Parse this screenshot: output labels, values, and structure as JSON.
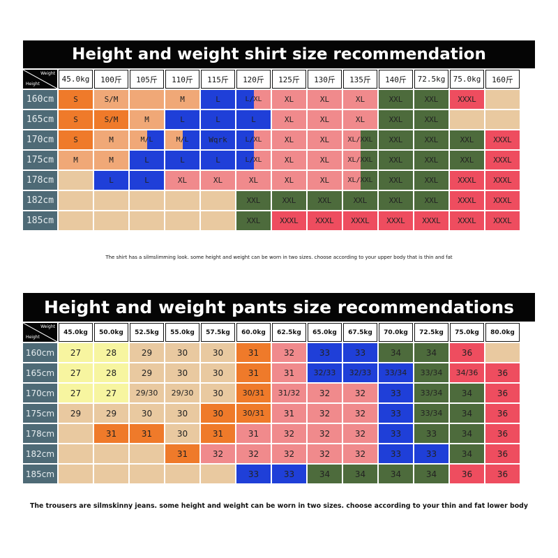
{
  "colors": {
    "black": "#050505",
    "row_header": "#4e6a76",
    "tan": "#e9c9a0",
    "orange": "#ef7a2a",
    "peach": "#f0a877",
    "blue": "#1f3fd8",
    "pink": "#f08a8c",
    "green": "#4d6b3c",
    "red": "#ee4d5f",
    "yellow": "#f7f5a0",
    "blank": "#e9c9a0"
  },
  "shirt": {
    "title": "Height and weight shirt size recommendation",
    "corner": {
      "weight": "Weight",
      "height": "Height"
    },
    "weights": [
      "45.0kg",
      "100斤",
      "105斤",
      "110斤",
      "115斤",
      "120斤",
      "125斤",
      "130斤",
      "135斤",
      "140斤",
      "72.5kg",
      "75.0kg",
      "160斤"
    ],
    "heights": [
      "160cm",
      "165cm",
      "170cm",
      "175cm",
      "178cm",
      "182cm",
      "185cm"
    ],
    "rows": [
      [
        [
          "S",
          "orange"
        ],
        [
          "S/M",
          "peach"
        ],
        [
          "",
          "peach"
        ],
        [
          "M",
          "peach"
        ],
        [
          "L",
          "blue"
        ],
        [
          "L/XL",
          "blue|pink"
        ],
        [
          "XL",
          "pink"
        ],
        [
          "XL",
          "pink"
        ],
        [
          "XL",
          "pink"
        ],
        [
          "XXL",
          "green"
        ],
        [
          "XXL",
          "green"
        ],
        [
          "XXXL",
          "red"
        ],
        [
          "",
          "blank"
        ]
      ],
      [
        [
          "S",
          "orange"
        ],
        [
          "S/M",
          "orange"
        ],
        [
          "M",
          "peach"
        ],
        [
          "L",
          "blue"
        ],
        [
          "L",
          "blue"
        ],
        [
          "L",
          "blue"
        ],
        [
          "XL",
          "pink"
        ],
        [
          "XL",
          "pink"
        ],
        [
          "XL",
          "pink"
        ],
        [
          "XXL",
          "green"
        ],
        [
          "XXL",
          "green"
        ],
        [
          "",
          "blank"
        ],
        [
          "",
          "blank"
        ]
      ],
      [
        [
          "S",
          "orange"
        ],
        [
          "M",
          "peach"
        ],
        [
          "M/L",
          "peach|blue"
        ],
        [
          "M/L",
          "peach|blue"
        ],
        [
          "Wqrk",
          "blue"
        ],
        [
          "L/XL",
          "blue|pink"
        ],
        [
          "XL",
          "pink"
        ],
        [
          "XL",
          "pink"
        ],
        [
          "XL/XXL",
          "pink|green"
        ],
        [
          "XXL",
          "green"
        ],
        [
          "XXL",
          "green"
        ],
        [
          "XXL",
          "green"
        ],
        [
          "XXXL",
          "red"
        ]
      ],
      [
        [
          "M",
          "peach"
        ],
        [
          "M",
          "peach"
        ],
        [
          "L",
          "blue"
        ],
        [
          "L",
          "blue"
        ],
        [
          "L",
          "blue"
        ],
        [
          "L/XL",
          "blue|pink"
        ],
        [
          "XL",
          "pink"
        ],
        [
          "XL",
          "pink"
        ],
        [
          "XL/XXL",
          "pink|green"
        ],
        [
          "XXL",
          "green"
        ],
        [
          "XXL",
          "green"
        ],
        [
          "XXL",
          "green"
        ],
        [
          "XXXL",
          "red"
        ]
      ],
      [
        [
          "",
          "blank"
        ],
        [
          "L",
          "blue"
        ],
        [
          "L",
          "blue"
        ],
        [
          "XL",
          "pink"
        ],
        [
          "XL",
          "pink"
        ],
        [
          "XL",
          "pink"
        ],
        [
          "XL",
          "pink"
        ],
        [
          "XL",
          "pink"
        ],
        [
          "XL/XXL",
          "pink|green"
        ],
        [
          "XXL",
          "green"
        ],
        [
          "XXL",
          "green"
        ],
        [
          "XXXL",
          "red"
        ],
        [
          "XXXL",
          "red"
        ]
      ],
      [
        [
          "",
          "blank"
        ],
        [
          "",
          "blank"
        ],
        [
          "",
          "blank"
        ],
        [
          "",
          "blank"
        ],
        [
          "",
          "blank"
        ],
        [
          "XXL",
          "green"
        ],
        [
          "XXL",
          "green"
        ],
        [
          "XXL",
          "green"
        ],
        [
          "XXL",
          "green"
        ],
        [
          "XXL",
          "green"
        ],
        [
          "XXL",
          "green"
        ],
        [
          "XXXL",
          "red"
        ],
        [
          "XXXL",
          "red"
        ]
      ],
      [
        [
          "",
          "blank"
        ],
        [
          "",
          "blank"
        ],
        [
          "",
          "blank"
        ],
        [
          "",
          "blank"
        ],
        [
          "",
          "blank"
        ],
        [
          "XXL",
          "green"
        ],
        [
          "XXXL",
          "red"
        ],
        [
          "XXXL",
          "red"
        ],
        [
          "XXXL",
          "red"
        ],
        [
          "XXXL",
          "red"
        ],
        [
          "XXXL",
          "red"
        ],
        [
          "XXXL",
          "red"
        ],
        [
          "XXXL",
          "red"
        ]
      ]
    ],
    "note": "The shirt has a silmslimming look. some height and weight can be worn in two sizes. choose according to your upper body that is thin and fat"
  },
  "pants": {
    "title": "Height and weight pants size recommendations",
    "corner": {
      "weight": "Weight",
      "height": "Height"
    },
    "weights": [
      "45.0kg",
      "50.0kg",
      "52.5kg",
      "55.0kg",
      "57.5kg",
      "60.0kg",
      "62.5kg",
      "65.0kg",
      "67.5kg",
      "70.0kg",
      "72.5kg",
      "75.0kg",
      "80.0kg"
    ],
    "heights": [
      "160cm",
      "165cm",
      "170cm",
      "175cm",
      "178cm",
      "182cm",
      "185cm"
    ],
    "rows": [
      [
        [
          "27",
          "yellow"
        ],
        [
          "28",
          "yellow"
        ],
        [
          "29",
          "tan"
        ],
        [
          "30",
          "tan"
        ],
        [
          "30",
          "tan"
        ],
        [
          "31",
          "orange"
        ],
        [
          "32",
          "pink"
        ],
        [
          "33",
          "blue"
        ],
        [
          "33",
          "blue"
        ],
        [
          "34",
          "green"
        ],
        [
          "34",
          "green"
        ],
        [
          "36",
          "red"
        ],
        [
          "",
          "blank"
        ]
      ],
      [
        [
          "27",
          "yellow"
        ],
        [
          "28",
          "yellow"
        ],
        [
          "29",
          "tan"
        ],
        [
          "30",
          "tan"
        ],
        [
          "30",
          "tan"
        ],
        [
          "31",
          "orange"
        ],
        [
          "31",
          "pink"
        ],
        [
          "32/33",
          "blue"
        ],
        [
          "32/33",
          "blue"
        ],
        [
          "33/34",
          "blue"
        ],
        [
          "33/34",
          "green"
        ],
        [
          "34/36",
          "red"
        ],
        [
          "36",
          "red"
        ]
      ],
      [
        [
          "27",
          "yellow"
        ],
        [
          "27",
          "yellow"
        ],
        [
          "29/30",
          "tan"
        ],
        [
          "29/30",
          "tan"
        ],
        [
          "30",
          "tan"
        ],
        [
          "30/31",
          "orange"
        ],
        [
          "31/32",
          "pink"
        ],
        [
          "32",
          "pink"
        ],
        [
          "32",
          "pink"
        ],
        [
          "33",
          "blue"
        ],
        [
          "33/34",
          "green"
        ],
        [
          "34",
          "green"
        ],
        [
          "36",
          "red"
        ]
      ],
      [
        [
          "29",
          "tan"
        ],
        [
          "29",
          "tan"
        ],
        [
          "30",
          "tan"
        ],
        [
          "30",
          "tan"
        ],
        [
          "30",
          "orange"
        ],
        [
          "30/31",
          "orange"
        ],
        [
          "31",
          "pink"
        ],
        [
          "32",
          "pink"
        ],
        [
          "32",
          "pink"
        ],
        [
          "33",
          "blue"
        ],
        [
          "33/34",
          "green"
        ],
        [
          "34",
          "green"
        ],
        [
          "36",
          "red"
        ]
      ],
      [
        [
          "",
          "blank"
        ],
        [
          "31",
          "orange"
        ],
        [
          "31",
          "orange"
        ],
        [
          "30",
          "tan"
        ],
        [
          "31",
          "orange"
        ],
        [
          "31",
          "pink"
        ],
        [
          "32",
          "pink"
        ],
        [
          "32",
          "pink"
        ],
        [
          "32",
          "pink"
        ],
        [
          "33",
          "blue"
        ],
        [
          "33",
          "green"
        ],
        [
          "34",
          "green"
        ],
        [
          "36",
          "red"
        ]
      ],
      [
        [
          "",
          "blank"
        ],
        [
          "",
          "blank"
        ],
        [
          "",
          "blank"
        ],
        [
          "31",
          "orange"
        ],
        [
          "32",
          "pink"
        ],
        [
          "32",
          "pink"
        ],
        [
          "32",
          "pink"
        ],
        [
          "32",
          "pink"
        ],
        [
          "32",
          "pink"
        ],
        [
          "33",
          "blue"
        ],
        [
          "33",
          "blue"
        ],
        [
          "34",
          "green"
        ],
        [
          "36",
          "red"
        ]
      ],
      [
        [
          "",
          "blank"
        ],
        [
          "",
          "blank"
        ],
        [
          "",
          "blank"
        ],
        [
          "",
          "blank"
        ],
        [
          "",
          "blank"
        ],
        [
          "33",
          "blue"
        ],
        [
          "33",
          "blue"
        ],
        [
          "34",
          "green"
        ],
        [
          "34",
          "green"
        ],
        [
          "34",
          "green"
        ],
        [
          "34",
          "green"
        ],
        [
          "36",
          "red"
        ],
        [
          "36",
          "red"
        ]
      ]
    ],
    "note": "The trousers are silmskinny jeans. some height and weight can be worn in two sizes. choose according to your thin and fat lower body"
  }
}
